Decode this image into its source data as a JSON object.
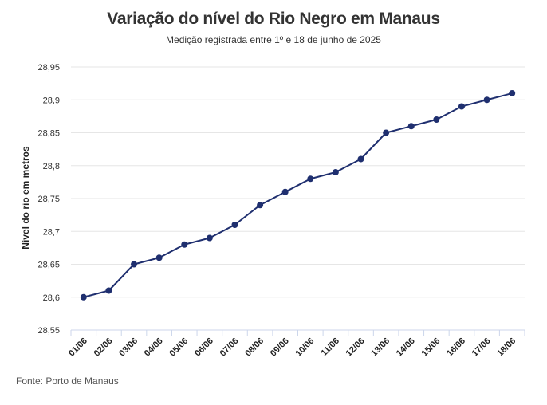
{
  "chart_data": {
    "type": "line",
    "title": "Variação do nível do Rio Negro em Manaus",
    "subtitle": "Medição registrada entre 1º e 18 de junho de 2025",
    "xlabel": "",
    "ylabel": "Nível do rio em metros",
    "source": "Fonte: Porto de Manaus",
    "categories": [
      "01/06",
      "02/06",
      "03/06",
      "04/06",
      "05/06",
      "06/06",
      "07/06",
      "08/06",
      "09/06",
      "10/06",
      "11/06",
      "12/06",
      "13/06",
      "14/06",
      "15/06",
      "16/06",
      "17/06",
      "18/06"
    ],
    "series": [
      {
        "values": [
          28.6,
          28.61,
          28.65,
          28.66,
          28.68,
          28.69,
          28.71,
          28.74,
          28.76,
          28.78,
          28.79,
          28.81,
          28.85,
          28.86,
          28.87,
          28.89,
          28.9,
          28.91
        ]
      }
    ],
    "yticks": [
      "28,55",
      "28,6",
      "28,65",
      "28,7",
      "28,75",
      "28,8",
      "28,85",
      "28,9",
      "28,95"
    ],
    "ylim": [
      28.55,
      28.95
    ],
    "grid": true,
    "legend": "none",
    "line_color": "#1f2f6f",
    "grid_color": "#e6e6e6",
    "axis_color": "#ccd6eb"
  }
}
